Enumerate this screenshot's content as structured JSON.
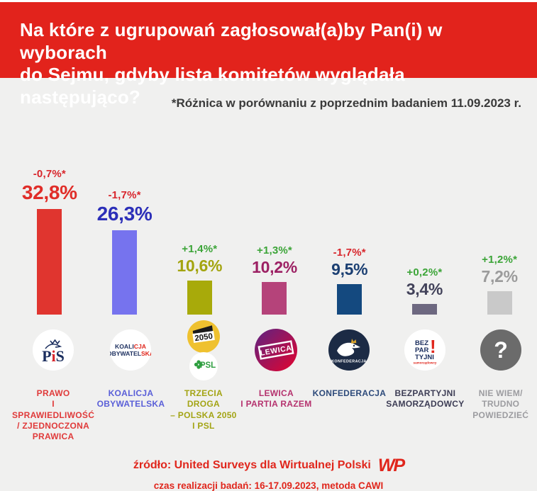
{
  "header": {
    "title_lines": [
      "Na które z ugrupowań zagłosował(a)by Pan(i) w wyborach",
      "do Sejmu, gdyby lista komitetów wyglądała następująco?"
    ]
  },
  "note": "*Różnica w porównaniu z poprzednim badaniem 11.09.2023 r.",
  "chart_data": {
    "type": "bar",
    "title": "Na które z ugrupowań zagłosował(a)by Pan(i) w wyborach do Sejmu, gdyby lista komitetów wyglądała następująco?",
    "note": "*Różnica w porównaniu z poprzednim badaniem 11.09.2023 r.",
    "unit": "%",
    "ylim": [
      0,
      35
    ],
    "grid": false,
    "categories": [
      "PRAWO I SPRAWIEDLIWOŚĆ / ZJEDNOCZONA PRAWICA",
      "KOALICJA OBYWATELSKA",
      "TRZECIA DROGA – POLSKA 2050 I PSL",
      "LEWICA I PARTIA RAZEM",
      "KONFEDERACJA",
      "BEZPARTYJNI SAMORZĄDOWCY",
      "NIE WIEM/ TRUDNO POWIEDZIEĆ"
    ],
    "values": [
      32.8,
      26.3,
      10.6,
      10.2,
      9.5,
      3.4,
      7.2
    ],
    "changes_vs_previous": [
      -0.7,
      -1.7,
      1.4,
      1.3,
      -1.7,
      0.2,
      1.2
    ]
  },
  "parties": [
    {
      "name_lines": "PRAWO\nI SPRAWIEDLIWOŚĆ\n/ ZJEDNOCZONA\nPRAWICA",
      "value": 32.8,
      "value_label": "32,8%",
      "change_label": "-0,7%*",
      "bar_color": "#e0352f",
      "value_color": "#e02d28",
      "change_color": "#d8262c",
      "label_color": "#e03a3a"
    },
    {
      "name_lines": "KOALICJA\nOBYWATELSKA",
      "value": 26.3,
      "value_label": "26,3%",
      "change_label": "-1,7%*",
      "bar_color": "#7673ee",
      "value_color": "#2c2fb8",
      "change_color": "#d8262c",
      "label_color": "#5a5fd8"
    },
    {
      "name_lines": "TRZECIA DROGA\n– POLSKA 2050\nI PSL",
      "value": 10.6,
      "value_label": "10,6%",
      "change_label": "+1,4%*",
      "bar_color": "#a8aa0a",
      "value_color": "#a3a40f",
      "change_color": "#3ba437",
      "label_color": "#a3a414"
    },
    {
      "name_lines": "LEWICA\nI PARTIA RAZEM",
      "value": 10.2,
      "value_label": "10,2%",
      "change_label": "+1,3%*",
      "bar_color": "#b5437a",
      "value_color": "#9c2063",
      "change_color": "#3ba437",
      "label_color": "#b5326e"
    },
    {
      "name_lines": "KONFEDERACJA",
      "value": 9.5,
      "value_label": "9,5%",
      "change_label": "-1,7%*",
      "bar_color": "#14497f",
      "value_color": "#1b3f72",
      "change_color": "#d8262c",
      "label_color": "#2d4a7a"
    },
    {
      "name_lines": "BEZPARTYJNI\nSAMORZĄDOWCY",
      "value": 3.4,
      "value_label": "3,4%",
      "change_label": "+0,2%*",
      "bar_color": "#6d6880",
      "value_color": "#42425a",
      "change_color": "#3ba437",
      "label_color": "#3d3d55"
    },
    {
      "name_lines": "NIE WIEM/\nTRUDNO\nPOWIEDZIEĆ",
      "value": 7.2,
      "value_label": "7,2%",
      "change_label": "+1,2%*",
      "bar_color": "#c9c9c9",
      "value_color": "#9b9b9b",
      "change_color": "#3ba437",
      "label_color": "#9c9ca0"
    }
  ],
  "logos": {
    "pis": {
      "p": "P",
      "i": "i",
      "s": "S"
    },
    "ko": {
      "l1a": "KOALI",
      "l1b": "CJA",
      "l2a": "OBYWATEL",
      "l2b": "SKA"
    },
    "p2050": {
      "text": "2050"
    },
    "psl": {
      "text": "PSL"
    },
    "lewica": {
      "text": "LEWICA"
    },
    "konfederacja": {
      "text": "KONFEDERACJA"
    },
    "bezpartyjni": {
      "l1": "BEZ",
      "l2": "PAR",
      "l3": "TYJNI",
      "exclaim": "!",
      "sub": "samorządowcy"
    },
    "niewiem": {
      "glyph": "?"
    }
  },
  "footer": {
    "source": "źródło: United Surveys dla Wirtualnej Polski",
    "brand": "WP",
    "details": "czas realizacji badań: 16-17.09.2023, metoda CAWI"
  }
}
